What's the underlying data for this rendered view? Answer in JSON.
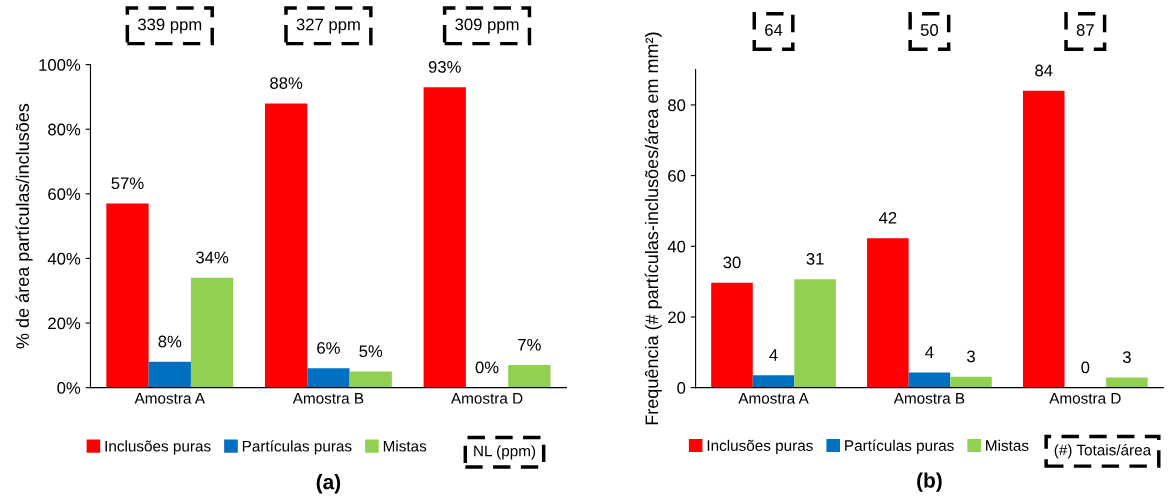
{
  "chart_data": [
    {
      "type": "bar",
      "title": "(a)",
      "ylabel": "% de área partículas/inclusões",
      "categories": [
        "Amostra A",
        "Amostra B",
        "Amostra D"
      ],
      "series": [
        {
          "name": "Inclusões puras",
          "color": "#ff0000",
          "values": [
            57,
            88,
            93
          ],
          "value_labels": [
            "57%",
            "88%",
            "93%"
          ]
        },
        {
          "name": "Partículas puras",
          "color": "#0070c0",
          "values": [
            8,
            6,
            0
          ],
          "value_labels": [
            "8%",
            "6%",
            "0%"
          ]
        },
        {
          "name": "Mistas",
          "color": "#92d050",
          "values": [
            34,
            5,
            7
          ],
          "value_labels": [
            "34%",
            "5%",
            "7%"
          ]
        }
      ],
      "ylim": [
        0,
        100
      ],
      "yticks": [
        {
          "value": 0,
          "label": "0%"
        },
        {
          "value": 20,
          "label": "20%"
        },
        {
          "value": 40,
          "label": "40%"
        },
        {
          "value": 60,
          "label": "60%"
        },
        {
          "value": 80,
          "label": "80%"
        },
        {
          "value": 100,
          "label": "100%"
        }
      ],
      "legend": "bottom",
      "annotations": [
        "339 ppm",
        "327 ppm",
        "309 ppm",
        "NL (ppm)"
      ]
    },
    {
      "type": "bar",
      "title": "(b)",
      "ylabel": "Frequência (# partículas-inclusões/área em mm²)",
      "categories": [
        "Amostra A",
        "Amostra B",
        "Amostra D"
      ],
      "series": [
        {
          "name": "Inclusões puras",
          "color": "#ff0000",
          "values": [
            29.7,
            42.3,
            84
          ],
          "value_labels": [
            "30",
            "42",
            "84"
          ]
        },
        {
          "name": "Partículas puras",
          "color": "#0070c0",
          "values": [
            3.5,
            4.3,
            0
          ],
          "value_labels": [
            "4",
            "4",
            "0"
          ]
        },
        {
          "name": "Mistas",
          "color": "#92d050",
          "values": [
            30.7,
            3.1,
            2.9
          ],
          "value_labels": [
            "31",
            "3",
            "3"
          ]
        }
      ],
      "ylim": [
        0,
        90
      ],
      "yticks": [
        0,
        20,
        40,
        60,
        80
      ],
      "legend": "bottom",
      "annotations": [
        "64",
        "50",
        "87",
        "(#) Totais/área"
      ]
    }
  ]
}
